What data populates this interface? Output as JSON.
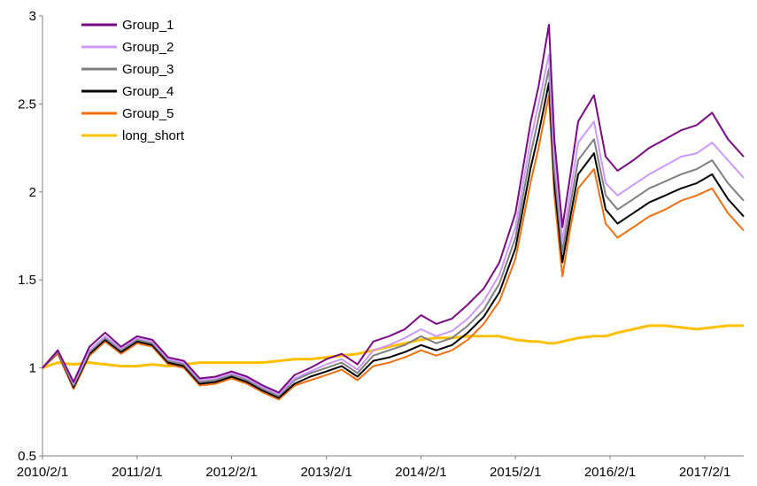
{
  "chart_data": {
    "type": "line",
    "title": "",
    "xlabel": "",
    "ylabel": "",
    "ylim": [
      0.5,
      3
    ],
    "yticks": [
      "0.5",
      "1",
      "1.5",
      "2",
      "2.5",
      "3"
    ],
    "xlim": [
      "2010-02-01",
      "2017-07-01"
    ],
    "xticks": [
      "2010/2/1",
      "2011/2/1",
      "2012/2/1",
      "2013/2/1",
      "2014/2/1",
      "2015/2/1",
      "2016/2/1",
      "2017/2/1"
    ],
    "legend_position": "top-left",
    "grid": false,
    "x": [
      "2010-02-01",
      "2010-04-01",
      "2010-06-01",
      "2010-08-01",
      "2010-10-01",
      "2010-12-01",
      "2011-02-01",
      "2011-04-01",
      "2011-06-01",
      "2011-08-01",
      "2011-10-01",
      "2011-12-01",
      "2012-02-01",
      "2012-04-01",
      "2012-06-01",
      "2012-08-01",
      "2012-10-01",
      "2012-12-01",
      "2013-02-01",
      "2013-04-01",
      "2013-06-01",
      "2013-08-01",
      "2013-10-01",
      "2013-12-01",
      "2014-02-01",
      "2014-04-01",
      "2014-06-01",
      "2014-08-01",
      "2014-10-01",
      "2014-12-01",
      "2015-02-01",
      "2015-04-01",
      "2015-05-01",
      "2015-06-10",
      "2015-07-01",
      "2015-08-01",
      "2015-09-01",
      "2015-10-01",
      "2015-12-01",
      "2016-01-15",
      "2016-03-01",
      "2016-05-01",
      "2016-07-01",
      "2016-09-01",
      "2016-11-01",
      "2017-01-01",
      "2017-03-01",
      "2017-05-01",
      "2017-07-01"
    ],
    "series": [
      {
        "name": "Group_1",
        "color": "#7B0A82",
        "values": [
          1.0,
          1.1,
          0.92,
          1.12,
          1.2,
          1.12,
          1.18,
          1.16,
          1.06,
          1.04,
          0.94,
          0.95,
          0.98,
          0.95,
          0.9,
          0.86,
          0.96,
          1.0,
          1.05,
          1.08,
          1.02,
          1.15,
          1.18,
          1.22,
          1.3,
          1.25,
          1.28,
          1.36,
          1.45,
          1.6,
          1.88,
          2.4,
          2.6,
          2.95,
          2.3,
          1.8,
          2.1,
          2.4,
          2.55,
          2.2,
          2.12,
          2.18,
          2.25,
          2.3,
          2.35,
          2.38,
          2.45,
          2.3,
          2.2
        ]
      },
      {
        "name": "Group_2",
        "color": "#CC99FF",
        "values": [
          1.0,
          1.1,
          0.91,
          1.1,
          1.18,
          1.11,
          1.17,
          1.15,
          1.05,
          1.03,
          0.93,
          0.94,
          0.97,
          0.94,
          0.89,
          0.85,
          0.94,
          0.98,
          1.02,
          1.05,
          0.99,
          1.1,
          1.13,
          1.17,
          1.22,
          1.18,
          1.21,
          1.28,
          1.38,
          1.53,
          1.8,
          2.3,
          2.5,
          2.78,
          2.2,
          1.72,
          2.0,
          2.28,
          2.4,
          2.05,
          1.98,
          2.04,
          2.1,
          2.15,
          2.2,
          2.22,
          2.28,
          2.18,
          2.08
        ]
      },
      {
        "name": "Group_3",
        "color": "#808080",
        "values": [
          1.0,
          1.09,
          0.9,
          1.09,
          1.17,
          1.1,
          1.16,
          1.14,
          1.04,
          1.02,
          0.92,
          0.93,
          0.96,
          0.93,
          0.88,
          0.84,
          0.93,
          0.97,
          1.0,
          1.03,
          0.97,
          1.07,
          1.1,
          1.13,
          1.18,
          1.14,
          1.17,
          1.24,
          1.33,
          1.48,
          1.74,
          2.22,
          2.42,
          2.7,
          2.12,
          1.66,
          1.93,
          2.18,
          2.3,
          1.98,
          1.9,
          1.96,
          2.02,
          2.06,
          2.1,
          2.13,
          2.18,
          2.05,
          1.95
        ]
      },
      {
        "name": "Group_4",
        "color": "#000000",
        "values": [
          1.0,
          1.09,
          0.89,
          1.08,
          1.16,
          1.09,
          1.15,
          1.13,
          1.03,
          1.01,
          0.91,
          0.92,
          0.95,
          0.92,
          0.87,
          0.83,
          0.91,
          0.95,
          0.98,
          1.01,
          0.95,
          1.04,
          1.06,
          1.09,
          1.13,
          1.1,
          1.13,
          1.2,
          1.29,
          1.43,
          1.68,
          2.14,
          2.33,
          2.62,
          2.05,
          1.6,
          1.86,
          2.1,
          2.22,
          1.9,
          1.82,
          1.88,
          1.94,
          1.98,
          2.02,
          2.05,
          2.1,
          1.96,
          1.86
        ]
      },
      {
        "name": "Group_5",
        "color": "#F07010",
        "values": [
          1.0,
          1.08,
          0.88,
          1.07,
          1.15,
          1.08,
          1.14,
          1.12,
          1.02,
          1.0,
          0.9,
          0.91,
          0.94,
          0.91,
          0.86,
          0.82,
          0.9,
          0.93,
          0.96,
          0.99,
          0.93,
          1.01,
          1.03,
          1.06,
          1.1,
          1.07,
          1.1,
          1.16,
          1.25,
          1.38,
          1.62,
          2.06,
          2.25,
          2.55,
          1.98,
          1.52,
          1.8,
          2.02,
          2.13,
          1.82,
          1.74,
          1.8,
          1.86,
          1.9,
          1.95,
          1.98,
          2.02,
          1.88,
          1.78
        ]
      },
      {
        "name": "long_short",
        "color": "#FFC000",
        "values": [
          1.0,
          1.03,
          1.02,
          1.03,
          1.02,
          1.01,
          1.01,
          1.02,
          1.01,
          1.02,
          1.03,
          1.03,
          1.03,
          1.03,
          1.03,
          1.04,
          1.05,
          1.05,
          1.06,
          1.07,
          1.08,
          1.1,
          1.12,
          1.14,
          1.16,
          1.17,
          1.17,
          1.18,
          1.18,
          1.18,
          1.16,
          1.15,
          1.15,
          1.14,
          1.14,
          1.15,
          1.16,
          1.17,
          1.18,
          1.18,
          1.2,
          1.22,
          1.24,
          1.24,
          1.23,
          1.22,
          1.23,
          1.24,
          1.24
        ]
      }
    ]
  }
}
